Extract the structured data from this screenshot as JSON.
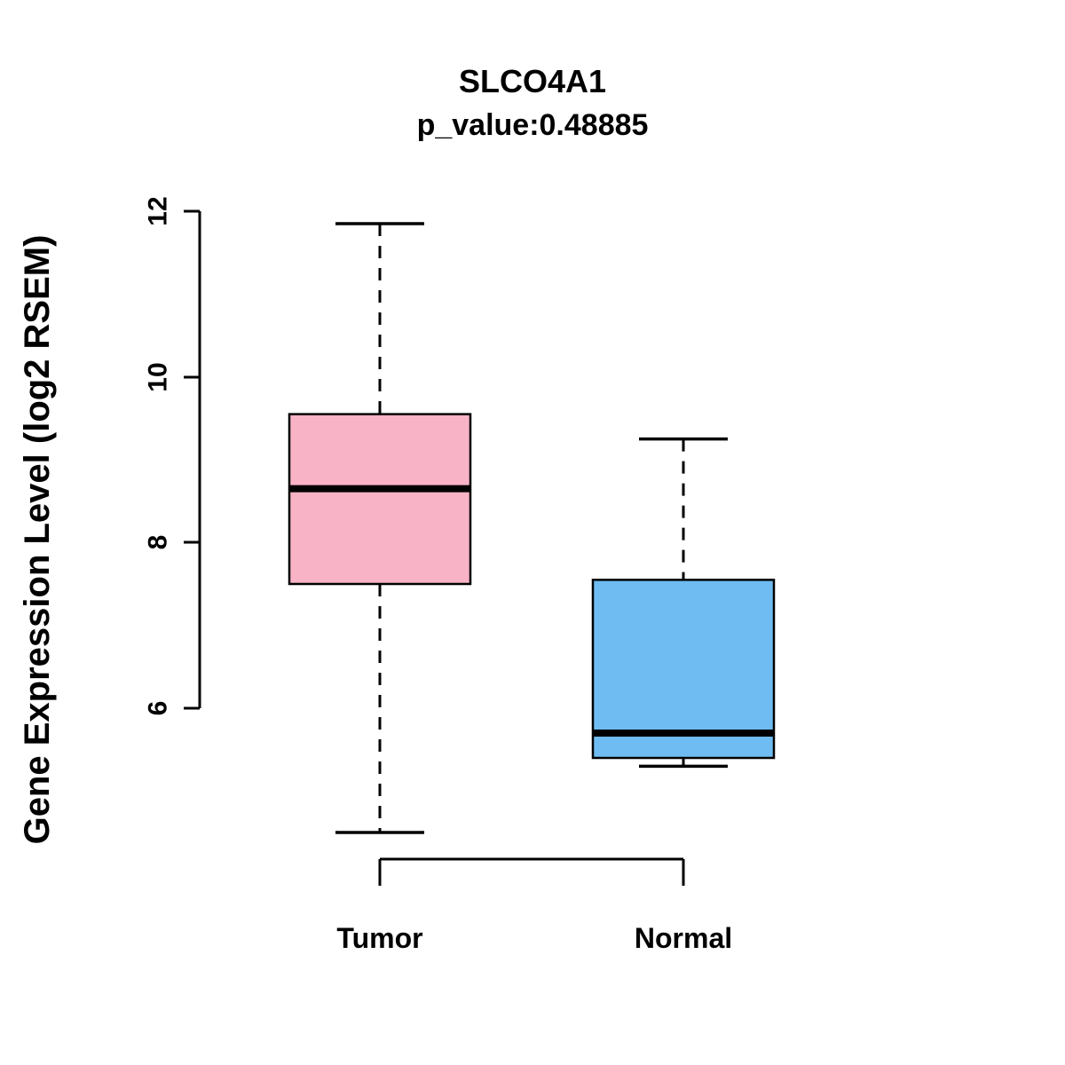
{
  "chart_data": {
    "type": "boxplot",
    "title": "SLCO4A1",
    "subtitle": "p_value:0.48885",
    "ylabel": "Gene Expression Level (log2 RSEM)",
    "xlabel": "",
    "yticks": [
      6,
      8,
      10,
      12
    ],
    "ylim": [
      4.2,
      12.1
    ],
    "grid": false,
    "legend": "none",
    "groups": [
      {
        "label": "Tumor",
        "color": "#F9B3C6",
        "stats": {
          "lower_whisker": 4.5,
          "q1": 7.5,
          "median": 8.65,
          "q3": 9.55,
          "upper_whisker": 11.85
        }
      },
      {
        "label": "Normal",
        "color": "#6FBCF2",
        "stats": {
          "lower_whisker": 5.3,
          "q1": 5.4,
          "median": 5.7,
          "q3": 7.55,
          "upper_whisker": 9.25
        }
      }
    ]
  }
}
